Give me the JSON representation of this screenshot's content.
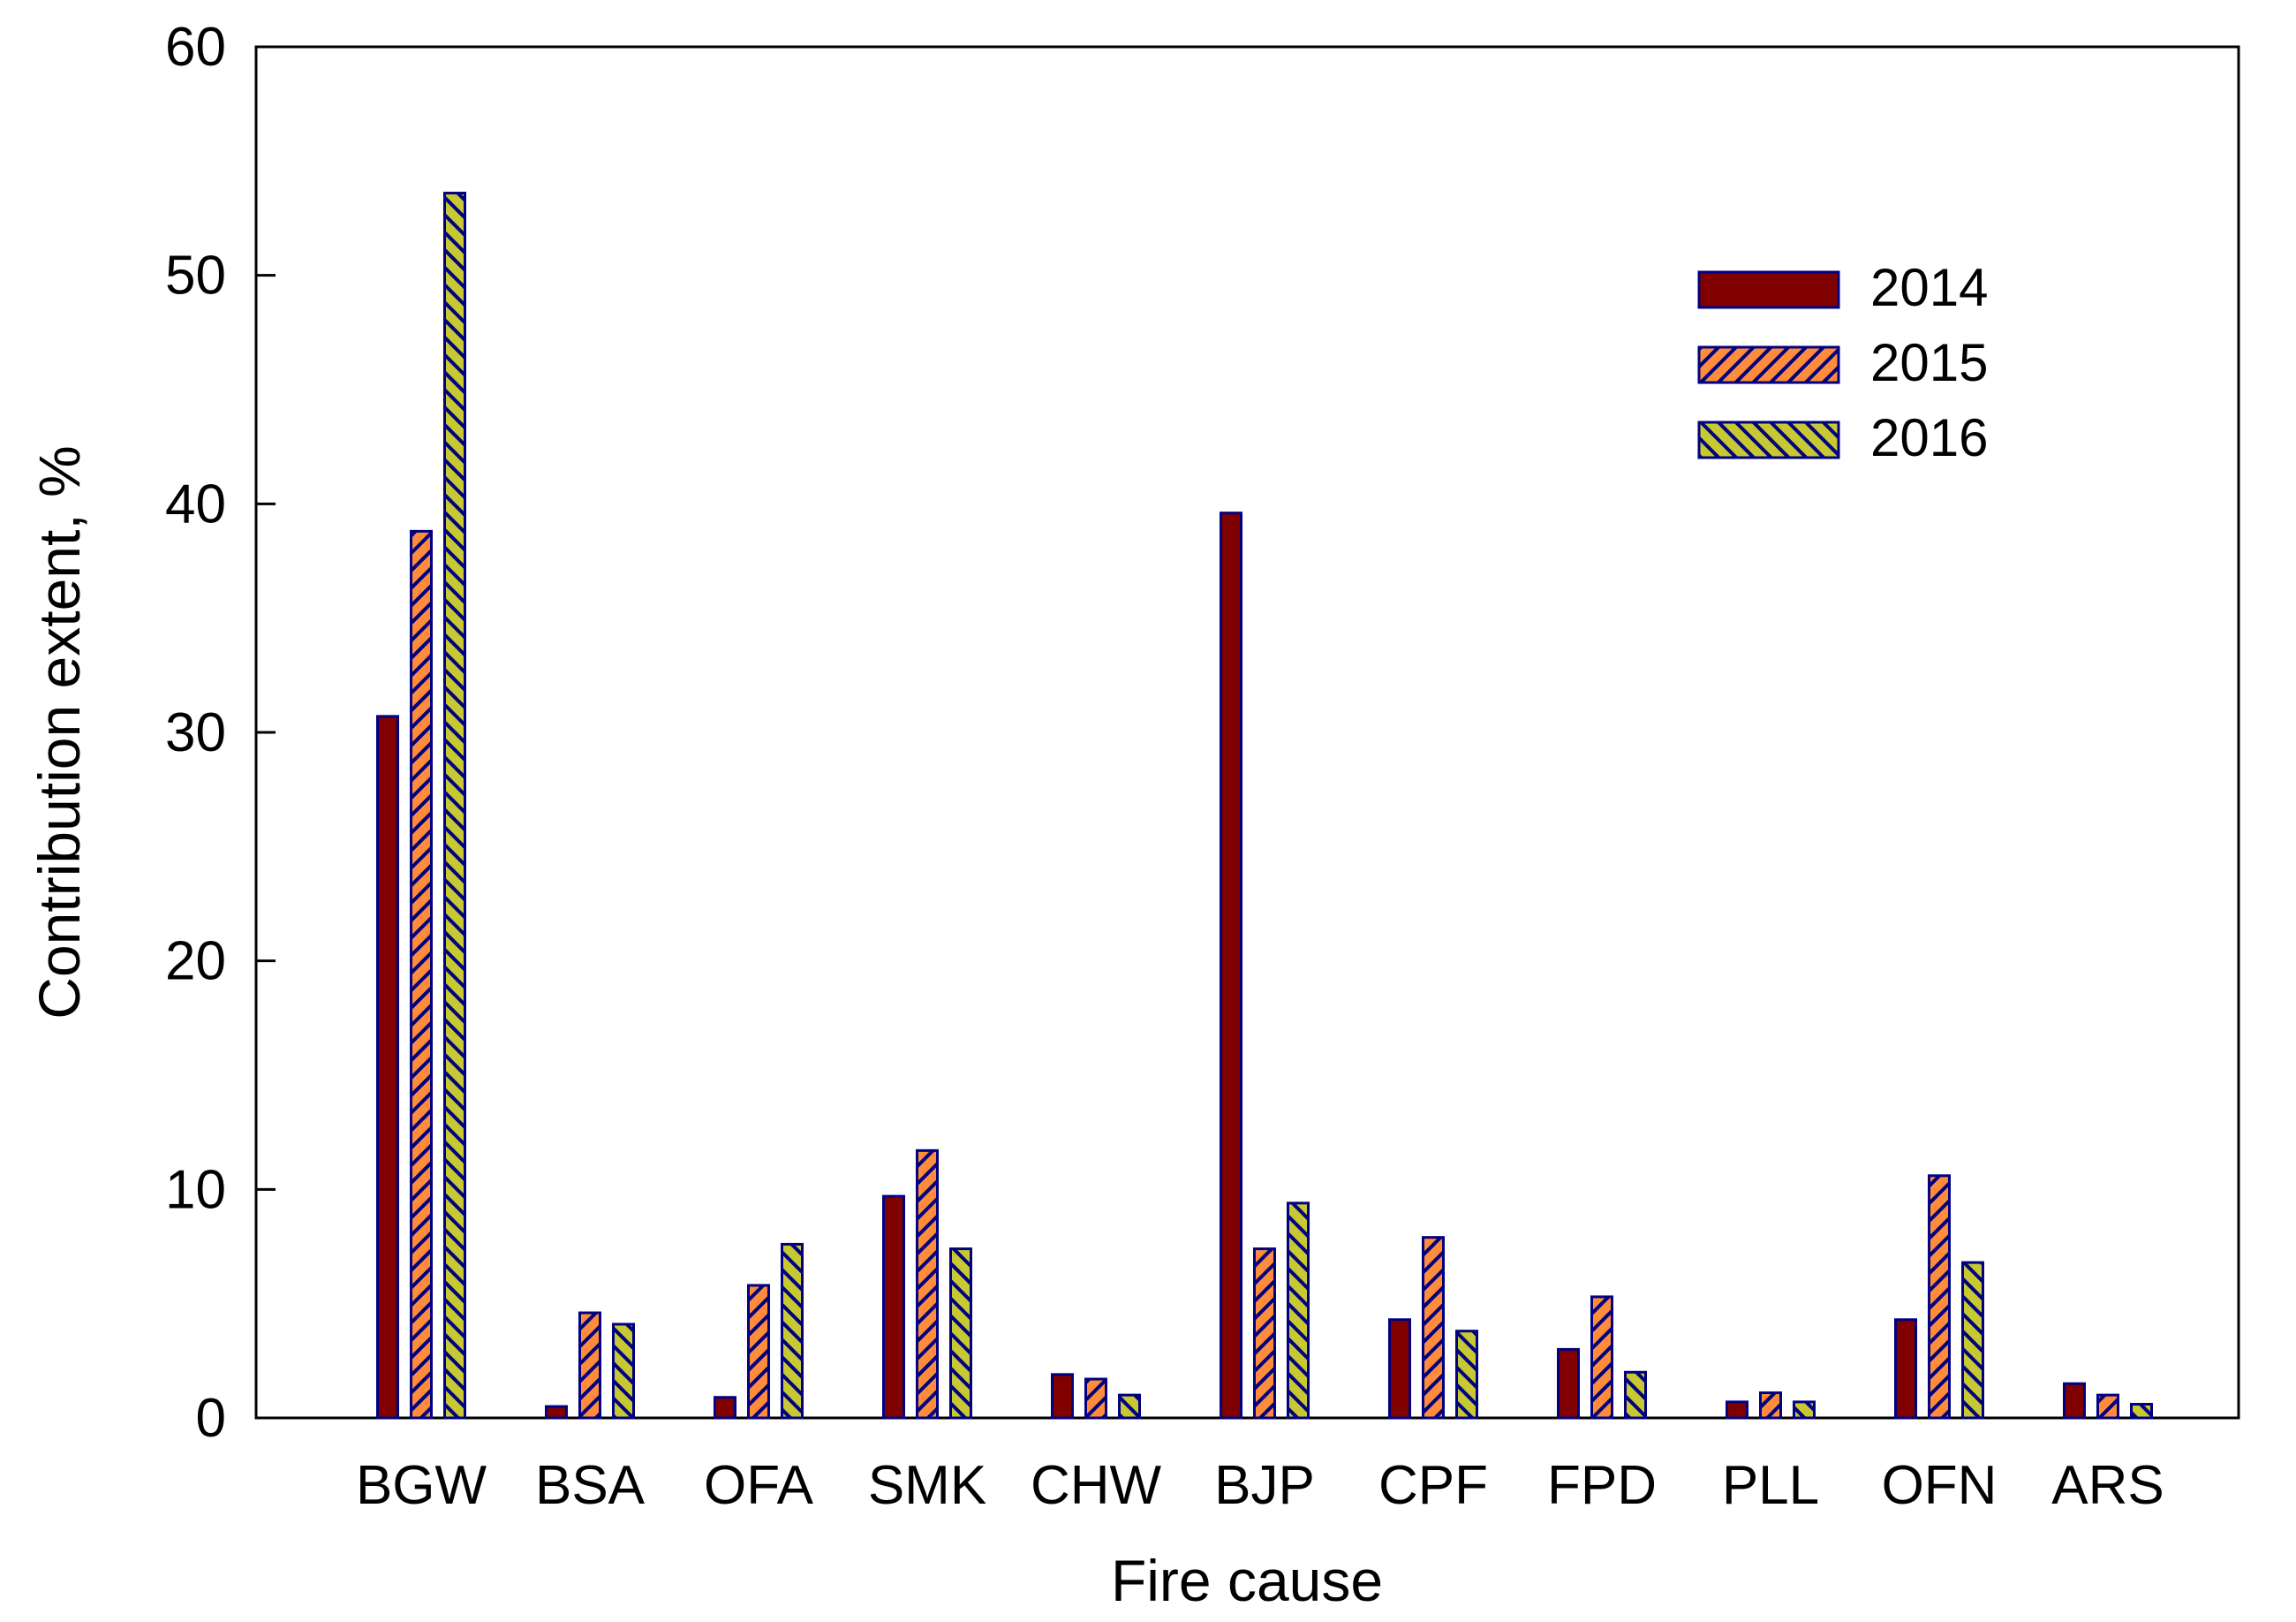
{
  "chart_data": {
    "type": "bar",
    "title": "",
    "xlabel": "Fire cause",
    "ylabel": "Contribution extent, %",
    "ylim": [
      0,
      60
    ],
    "yticks": [
      0,
      10,
      20,
      30,
      40,
      50,
      60
    ],
    "grid": false,
    "legend_position": "top-right",
    "categories": [
      "BGW",
      "BSA",
      "OFA",
      "SMK",
      "CHW",
      "BJP",
      "CPF",
      "FPD",
      "PLL",
      "OFN",
      "ARS"
    ],
    "series": [
      {
        "name": "2014",
        "pattern": "solid",
        "color": "#800000",
        "values": [
          30.7,
          0.5,
          0.9,
          9.7,
          1.9,
          39.6,
          4.3,
          3.0,
          0.7,
          4.3,
          1.5
        ]
      },
      {
        "name": "2015",
        "pattern": "diagonal-forward",
        "color": "#FF8C3A",
        "values": [
          38.8,
          4.6,
          5.8,
          11.7,
          1.7,
          7.4,
          7.9,
          5.3,
          1.1,
          10.6,
          1.0
        ]
      },
      {
        "name": "2016",
        "pattern": "diagonal-backward",
        "color": "#C8C832",
        "values": [
          53.6,
          4.1,
          7.6,
          7.4,
          1.0,
          9.4,
          3.8,
          2.0,
          0.7,
          6.8,
          0.6
        ]
      }
    ],
    "edge_color": "#000080"
  }
}
